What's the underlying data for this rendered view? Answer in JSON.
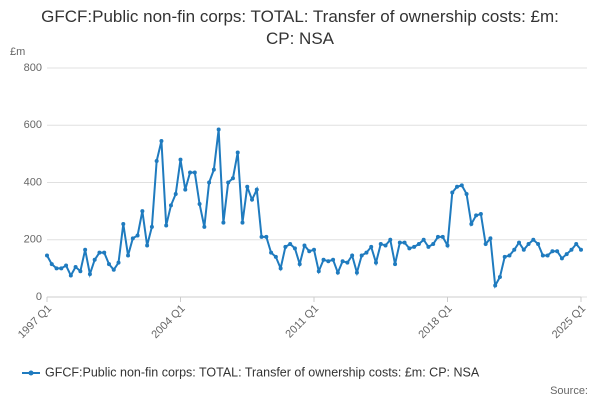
{
  "chart_data": {
    "type": "line",
    "title": "GFCF:Public non-fin corps: TOTAL: Transfer of ownership costs: £m: CP: NSA",
    "y_label": "£m",
    "source": "Source:",
    "categories": [
      "1997 Q1",
      null,
      null,
      null,
      null,
      null,
      null,
      null,
      null,
      null,
      null,
      null,
      null,
      null,
      null,
      null,
      null,
      null,
      null,
      null,
      null,
      null,
      null,
      null,
      null,
      null,
      null,
      null,
      "2004 Q1",
      null,
      null,
      null,
      null,
      null,
      null,
      null,
      null,
      null,
      null,
      null,
      null,
      null,
      null,
      null,
      null,
      null,
      null,
      null,
      null,
      null,
      null,
      null,
      null,
      null,
      null,
      null,
      "2011 Q1",
      null,
      null,
      null,
      null,
      null,
      null,
      null,
      null,
      null,
      null,
      null,
      null,
      null,
      null,
      null,
      null,
      null,
      null,
      null,
      null,
      null,
      null,
      null,
      null,
      null,
      null,
      null,
      "2018 Q1",
      null,
      null,
      null,
      null,
      null,
      null,
      null,
      null,
      null,
      null,
      null,
      null,
      null,
      null,
      null,
      null,
      null,
      null,
      null,
      null,
      null,
      null,
      null,
      null,
      null,
      null,
      null,
      "2025 Q1"
    ],
    "series": [
      {
        "name": "GFCF:Public non-fin corps: TOTAL: Transfer of ownership costs: £m: CP: NSA",
        "color": "#1f7bbf",
        "values": [
          145,
          115,
          100,
          100,
          110,
          75,
          105,
          90,
          165,
          80,
          130,
          155,
          155,
          115,
          95,
          120,
          255,
          145,
          205,
          215,
          300,
          180,
          245,
          475,
          545,
          250,
          320,
          360,
          480,
          375,
          435,
          435,
          325,
          245,
          400,
          445,
          585,
          260,
          400,
          415,
          505,
          260,
          385,
          340,
          375,
          210,
          210,
          155,
          140,
          100,
          175,
          185,
          170,
          115,
          180,
          160,
          165,
          90,
          130,
          125,
          130,
          85,
          125,
          120,
          145,
          85,
          145,
          155,
          175,
          120,
          185,
          180,
          200,
          115,
          190,
          190,
          170,
          175,
          185,
          200,
          175,
          185,
          210,
          210,
          180,
          365,
          385,
          390,
          360,
          255,
          285,
          290,
          185,
          205,
          40,
          70,
          140,
          145,
          165,
          190,
          165,
          185,
          200,
          185,
          145,
          145,
          160,
          160,
          135,
          150,
          165,
          185,
          165
        ]
      }
    ],
    "ylim": [
      0,
      800
    ],
    "yticks": [
      0,
      200,
      400,
      600,
      800
    ],
    "grid": true,
    "legend": "bottom"
  }
}
